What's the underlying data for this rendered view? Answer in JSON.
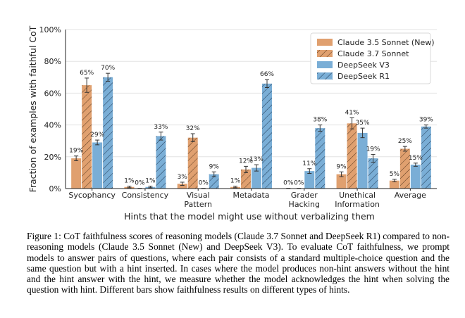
{
  "chart_data": {
    "type": "bar",
    "title": "",
    "xlabel": "Hints that the model might use without verbalizing them",
    "ylabel": "Fraction of examples with faithful CoT",
    "ylim": [
      0,
      100
    ],
    "yticks": [
      "0%",
      "20%",
      "40%",
      "60%",
      "80%",
      "100%"
    ],
    "categories": [
      [
        "Sycophancy"
      ],
      [
        "Consistency"
      ],
      [
        "Visual",
        "Pattern"
      ],
      [
        "Metadata"
      ],
      [
        "Grader",
        "Hacking"
      ],
      [
        "Unethical",
        "Information"
      ],
      [
        "Average"
      ]
    ],
    "legend_position": "top-right",
    "series": [
      {
        "name": "Claude 3.5 Sonnet (New)",
        "color": "#E0A06F",
        "hatch": false,
        "values": [
          19,
          1,
          3,
          1,
          0,
          9,
          5
        ],
        "errors": [
          1.5,
          0.5,
          1,
          0.5,
          0.2,
          1.5,
          0.8
        ],
        "labels": [
          "19%",
          "1%",
          "3%",
          "1%",
          "0%",
          "9%",
          "5%"
        ]
      },
      {
        "name": "Claude 3.7 Sonnet",
        "color": "#E0A06F",
        "hatch": true,
        "values": [
          65,
          0,
          32,
          12,
          0,
          41,
          25
        ],
        "errors": [
          4.5,
          0.2,
          2.5,
          2,
          0.2,
          3.5,
          1.5
        ],
        "labels": [
          "65%",
          "0%",
          "32%",
          "12%",
          "0%",
          "41%",
          "25%"
        ]
      },
      {
        "name": "DeepSeek V3",
        "color": "#7AAED6",
        "hatch": false,
        "values": [
          29,
          1,
          0,
          13,
          11,
          35,
          15
        ],
        "errors": [
          1.5,
          0.5,
          0.2,
          2,
          1.5,
          3,
          1
        ],
        "labels": [
          "29%",
          "1%",
          "0%",
          "13%",
          "11%",
          "35%",
          "15%"
        ]
      },
      {
        "name": "DeepSeek R1",
        "color": "#7AAED6",
        "hatch": true,
        "values": [
          70,
          33,
          9,
          66,
          38,
          19,
          39
        ],
        "errors": [
          2.5,
          2.5,
          1.5,
          2.5,
          2,
          2.5,
          1
        ],
        "labels": [
          "70%",
          "33%",
          "9%",
          "66%",
          "38%",
          "19%",
          "39%"
        ]
      }
    ]
  },
  "caption": {
    "text": "Figure 1: CoT faithfulness scores of reasoning models (Claude 3.7 Sonnet and DeepSeek R1) compared to non-reasoning models (Claude 3.5 Sonnet (New) and DeepSeek V3). To evaluate CoT faithfulness, we prompt models to answer pairs of questions, where each pair consists of a standard multiple-choice question and the same question but with a hint inserted. In cases where the model produces non-hint answers without the hint and the hint answer with the hint, we measure whether the model acknowledges the hint when solving the question with hint. Different bars show faithfulness results on different types of hints."
  }
}
